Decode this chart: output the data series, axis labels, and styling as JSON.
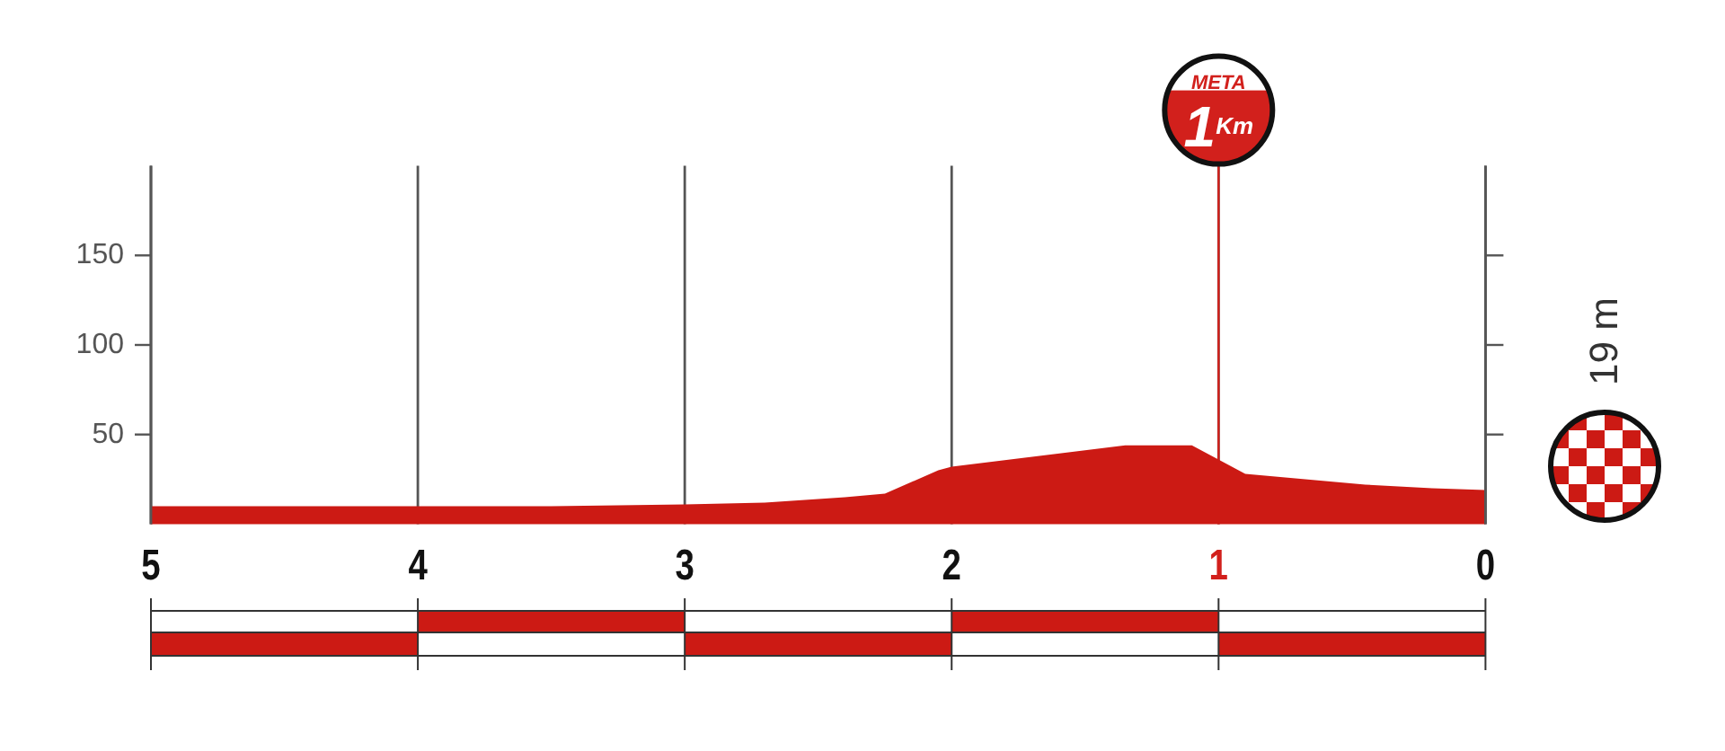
{
  "chart_data": {
    "type": "area",
    "x": [
      5,
      4.5,
      4,
      3.5,
      3,
      2.7,
      2.4,
      2.25,
      2.05,
      2,
      1.35,
      1.1,
      0.9,
      0.45,
      0.2,
      0
    ],
    "values": [
      10,
      10,
      10,
      10,
      11,
      12,
      15,
      17,
      30,
      32,
      44,
      44,
      28,
      22,
      20,
      19
    ],
    "color": "#cc1a14",
    "xlim": [
      5,
      0
    ],
    "ylim": [
      0,
      200
    ],
    "xticks": [
      5,
      4,
      3,
      2,
      1,
      0
    ],
    "yticks": [
      50,
      100,
      150
    ],
    "grid": "x",
    "ref_lines": [
      {
        "axis": "x",
        "value": 1,
        "label": "META 1$^{Km}$",
        "color": "#d2201c"
      }
    ],
    "annotations": [
      "19 m"
    ]
  }
}
